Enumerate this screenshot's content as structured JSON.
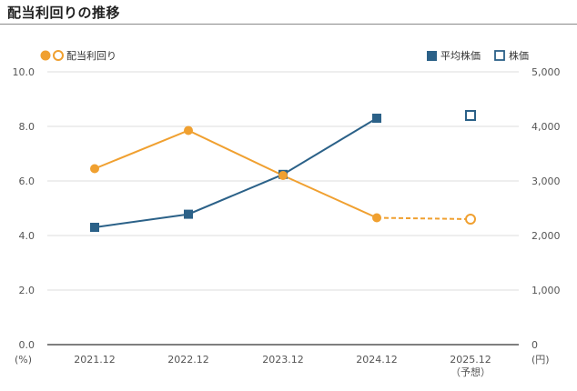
{
  "title": "配当利回りの推移",
  "colors": {
    "yield": "#f0a030",
    "price": "#2b6188",
    "grid": "#dddddd",
    "axis": "#555555"
  },
  "chart_data": {
    "type": "line",
    "categories": [
      "2021.12",
      "2022.12",
      "2023.12",
      "2024.12",
      "2025.12"
    ],
    "category_sublabels": [
      "",
      "",
      "",
      "",
      "（予想）"
    ],
    "left_axis": {
      "ticks": [
        "0.0",
        "2.0",
        "4.0",
        "6.0",
        "8.0",
        "10.0"
      ],
      "unit": "(%)",
      "ylim": [
        0,
        10
      ]
    },
    "right_axis": {
      "ticks": [
        "0",
        "1,000",
        "2,000",
        "3,000",
        "4,000",
        "5,000"
      ],
      "unit": "(円)",
      "ylim": [
        0,
        5000
      ]
    },
    "series": [
      {
        "name": "配当利回り",
        "axis": "left",
        "values": [
          6.45,
          7.85,
          6.2,
          4.65,
          4.6
        ],
        "projected_index": 4,
        "marker": "circle"
      },
      {
        "name": "平均株価",
        "axis": "right",
        "values": [
          2150,
          2390,
          3120,
          4150,
          null
        ],
        "marker": "square"
      },
      {
        "name": "株価",
        "axis": "right",
        "values": [
          null,
          null,
          null,
          null,
          4200
        ],
        "marker": "square-open"
      }
    ],
    "grid": true,
    "legend": [
      "top-left",
      "top-right"
    ]
  }
}
